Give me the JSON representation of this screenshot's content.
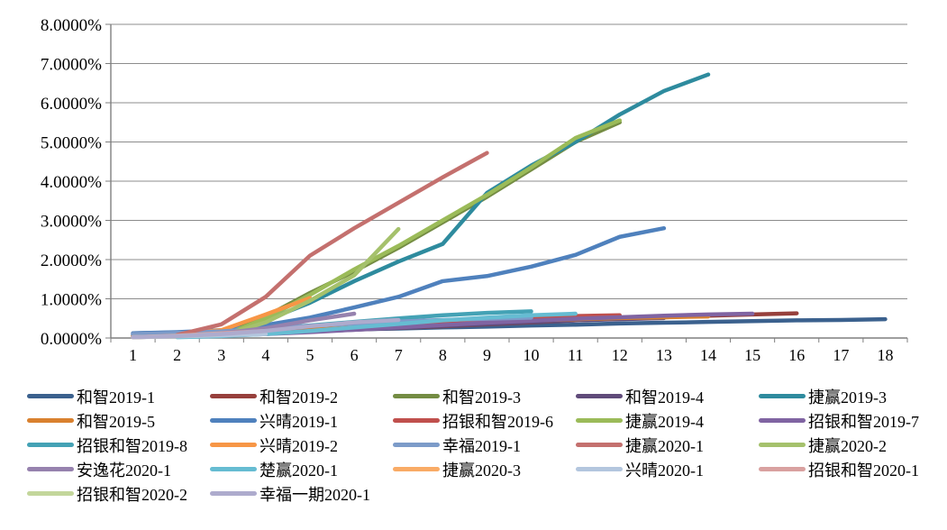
{
  "chart_data": {
    "type": "line",
    "title": "",
    "xlabel": "",
    "ylabel": "",
    "grid": true,
    "legend_position": "bottom",
    "ylim": [
      0,
      8
    ],
    "x_ticks": [
      "1",
      "2",
      "3",
      "4",
      "5",
      "6",
      "7",
      "8",
      "9",
      "10",
      "11",
      "12",
      "13",
      "14",
      "15",
      "16",
      "17",
      "18"
    ],
    "y_tick_labels": [
      "0.0000%",
      "1.0000%",
      "2.0000%",
      "3.0000%",
      "4.0000%",
      "5.0000%",
      "6.0000%",
      "7.0000%",
      "8.0000%"
    ],
    "axis_color": "#7f7f7f",
    "grid_color": "#8c8c8c",
    "series": [
      {
        "name": "和智2019-1",
        "color": "#3B618E",
        "x": [
          1,
          2,
          3,
          4,
          5,
          6,
          7,
          8,
          9,
          10,
          11,
          12,
          13,
          14,
          15,
          16,
          17,
          18
        ],
        "values": [
          0.12,
          0.14,
          0.16,
          0.18,
          0.2,
          0.22,
          0.24,
          0.27,
          0.29,
          0.32,
          0.34,
          0.37,
          0.39,
          0.41,
          0.43,
          0.45,
          0.46,
          0.48
        ]
      },
      {
        "name": "和智2019-2",
        "color": "#97403C",
        "x": [
          1,
          2,
          3,
          4,
          5,
          6,
          7,
          8,
          9,
          10,
          11,
          12,
          13,
          14,
          15,
          16
        ],
        "values": [
          0.08,
          0.1,
          0.12,
          0.15,
          0.18,
          0.22,
          0.26,
          0.3,
          0.35,
          0.4,
          0.45,
          0.49,
          0.53,
          0.57,
          0.6,
          0.63
        ]
      },
      {
        "name": "和智2019-3",
        "color": "#748C43",
        "x": [
          1,
          2,
          3,
          4,
          5,
          6,
          7,
          8,
          9,
          10,
          11,
          12
        ],
        "values": [
          0.05,
          0.08,
          0.12,
          0.55,
          1.15,
          1.7,
          2.3,
          2.95,
          3.6,
          4.3,
          5.0,
          5.5
        ]
      },
      {
        "name": "和智2019-4",
        "color": "#604B7A",
        "x": [
          1,
          2,
          3,
          4,
          5,
          6,
          7,
          8,
          9,
          10,
          11,
          12,
          13
        ],
        "values": [
          0.06,
          0.08,
          0.1,
          0.13,
          0.17,
          0.21,
          0.26,
          0.31,
          0.36,
          0.41,
          0.45,
          0.48,
          0.51
        ]
      },
      {
        "name": "捷赢2019-3",
        "color": "#2E8B9E",
        "x": [
          3,
          4,
          5,
          6,
          7,
          8,
          9,
          10,
          11,
          12,
          13,
          14
        ],
        "values": [
          0.1,
          0.45,
          0.9,
          1.45,
          1.95,
          2.4,
          3.7,
          4.4,
          5.0,
          5.7,
          6.3,
          6.72
        ]
      },
      {
        "name": "和智2019-5",
        "color": "#D9812F",
        "x": [
          1,
          2,
          3,
          4,
          5,
          6,
          7,
          8,
          9,
          10,
          11,
          12,
          13,
          14
        ],
        "values": [
          0.05,
          0.07,
          0.1,
          0.15,
          0.21,
          0.27,
          0.32,
          0.37,
          0.41,
          0.45,
          0.48,
          0.51,
          0.53,
          0.55
        ]
      },
      {
        "name": "兴晴2019-1",
        "color": "#4F81BD",
        "x": [
          1,
          2,
          3,
          4,
          5,
          6,
          7,
          8,
          9,
          10,
          11,
          12,
          13
        ],
        "values": [
          0.12,
          0.15,
          0.2,
          0.33,
          0.52,
          0.78,
          1.05,
          1.45,
          1.58,
          1.82,
          2.12,
          2.58,
          2.8
        ]
      },
      {
        "name": "招银和智2019-6",
        "color": "#C0504D",
        "x": [
          2,
          3,
          4,
          5,
          6,
          7,
          8,
          9,
          10,
          11,
          12
        ],
        "values": [
          0.03,
          0.06,
          0.12,
          0.18,
          0.25,
          0.32,
          0.4,
          0.46,
          0.52,
          0.56,
          0.58
        ]
      },
      {
        "name": "捷赢2019-4",
        "color": "#9BBB59",
        "x": [
          3,
          4,
          5,
          6,
          7,
          8,
          9,
          10,
          11,
          12
        ],
        "values": [
          0.05,
          0.5,
          1.1,
          1.75,
          2.35,
          3.0,
          3.65,
          4.35,
          5.1,
          5.55
        ]
      },
      {
        "name": "招银和智2019-7",
        "color": "#8064A2",
        "x": [
          2,
          3,
          4,
          5,
          6,
          7,
          8,
          9,
          10,
          11,
          12,
          13,
          14,
          15
        ],
        "values": [
          0.03,
          0.06,
          0.1,
          0.15,
          0.21,
          0.27,
          0.33,
          0.39,
          0.44,
          0.49,
          0.53,
          0.57,
          0.6,
          0.62
        ]
      },
      {
        "name": "招银和智2019-8",
        "color": "#44A2B5",
        "x": [
          1,
          2,
          3,
          4,
          5,
          6,
          7,
          8,
          9,
          10
        ],
        "values": [
          0.08,
          0.12,
          0.17,
          0.24,
          0.32,
          0.41,
          0.5,
          0.58,
          0.64,
          0.68
        ]
      },
      {
        "name": "兴晴2019-2",
        "color": "#F79646",
        "x": [
          1,
          2,
          3,
          4,
          5
        ],
        "values": [
          0.05,
          0.1,
          0.2,
          0.6,
          1.02
        ]
      },
      {
        "name": "幸福2019-1",
        "color": "#7C9BC9",
        "x": [
          1,
          2,
          3,
          4,
          5,
          6,
          7,
          8,
          9,
          10
        ],
        "values": [
          0.1,
          0.13,
          0.17,
          0.24,
          0.31,
          0.37,
          0.42,
          0.46,
          0.49,
          0.52
        ]
      },
      {
        "name": "捷赢2020-1",
        "color": "#C4706E",
        "x": [
          2,
          3,
          4,
          5,
          6,
          7,
          8,
          9
        ],
        "values": [
          0.08,
          0.35,
          1.05,
          2.1,
          2.8,
          3.45,
          4.1,
          4.72
        ]
      },
      {
        "name": "捷赢2020-2",
        "color": "#A5C16C",
        "x": [
          3,
          4,
          5,
          6,
          7
        ],
        "values": [
          0.05,
          0.4,
          0.95,
          1.6,
          2.78
        ]
      },
      {
        "name": "安逸花2020-1",
        "color": "#9682AE",
        "x": [
          1,
          2,
          3,
          4,
          5,
          6
        ],
        "values": [
          0.02,
          0.05,
          0.12,
          0.25,
          0.45,
          0.62
        ]
      },
      {
        "name": "楚赢2020-1",
        "color": "#66BCD2",
        "x": [
          2,
          3,
          4,
          5,
          6,
          7,
          8,
          9,
          10,
          11
        ],
        "values": [
          0.02,
          0.05,
          0.1,
          0.18,
          0.27,
          0.36,
          0.45,
          0.52,
          0.58,
          0.62
        ]
      },
      {
        "name": "捷赢2020-3",
        "color": "#F9AB66",
        "x": [
          1,
          2,
          3
        ],
        "values": [
          0.02,
          0.05,
          0.08
        ]
      },
      {
        "name": "兴晴2020-1",
        "color": "#B3C6DE",
        "x": [
          1,
          2,
          3,
          4
        ],
        "values": [
          0.02,
          0.04,
          0.07,
          0.1
        ]
      },
      {
        "name": "招银和智2020-1",
        "color": "#D9A1A0",
        "x": [
          1,
          2,
          3,
          4
        ],
        "values": [
          0.02,
          0.06,
          0.12,
          0.18
        ]
      },
      {
        "name": "招银和智2020-2",
        "color": "#C3D69B",
        "x": [
          1,
          2,
          3
        ],
        "values": [
          0.02,
          0.05,
          0.1
        ]
      },
      {
        "name": "幸福一期2020-1",
        "color": "#AEABCD",
        "x": [
          1,
          2,
          3,
          4,
          5,
          6,
          7
        ],
        "values": [
          0.02,
          0.05,
          0.1,
          0.18,
          0.3,
          0.4,
          0.46
        ]
      }
    ]
  }
}
